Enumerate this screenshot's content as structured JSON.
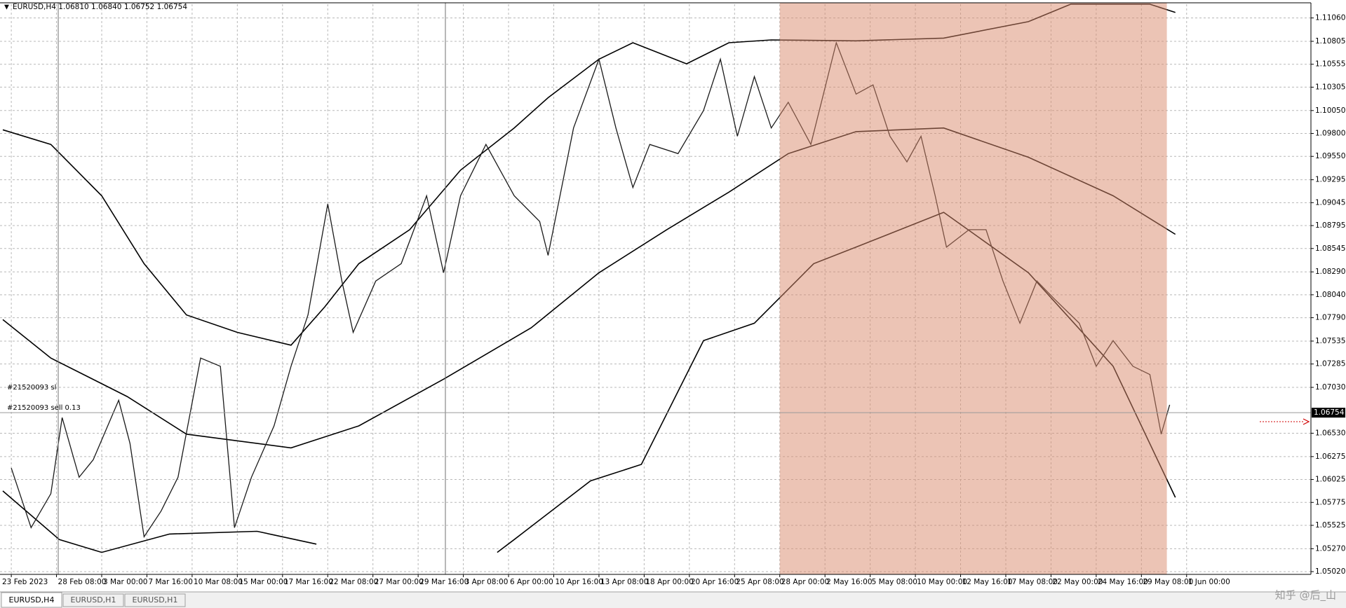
{
  "header": {
    "symbol_info": "EURUSD,H4  1.06810 1.06840 1.06752 1.06754"
  },
  "chart_data": {
    "type": "line",
    "x": [
      0,
      7,
      14,
      18,
      24,
      29,
      38,
      42,
      47,
      53,
      59,
      67,
      74,
      79,
      85,
      93,
      99,
      105,
      112,
      117,
      121,
      129,
      138,
      147,
      153,
      159,
      168,
      178,
      187,
      190,
      199,
      208,
      214,
      220,
      226,
      236,
      245,
      251,
      257,
      263,
      269,
      275,
      283,
      292,
      299,
      305,
      311,
      317,
      322,
      327,
      331,
      339,
      345,
      351,
      357,
      363,
      369,
      378,
      384,
      390,
      397,
      403,
      407,
      410
    ],
    "values": [
      1.0615,
      1.055,
      1.0587,
      1.067,
      1.0605,
      1.0624,
      1.0689,
      1.0642,
      1.054,
      1.0568,
      1.0605,
      1.0735,
      1.0726,
      1.055,
      1.0605,
      1.0661,
      1.0726,
      1.0782,
      1.0903,
      1.0819,
      1.0763,
      1.0819,
      1.0838,
      1.0912,
      1.0828,
      1.0912,
      1.0968,
      1.0912,
      1.0884,
      1.0847,
      1.0986,
      1.1061,
      1.0986,
      1.0921,
      1.0968,
      1.0958,
      1.1005,
      1.1061,
      1.0977,
      1.1042,
      1.0986,
      1.1014,
      1.0968,
      1.1079,
      1.1023,
      1.1033,
      1.0977,
      1.0949,
      1.0977,
      1.0912,
      1.0856,
      1.0875,
      1.0875,
      1.0819,
      1.0773,
      1.0819,
      1.08,
      1.0773,
      1.0726,
      1.0754,
      1.0726,
      1.0717,
      1.0652,
      1.0684
    ],
    "color": "#1a1a1a",
    "bands": [
      {
        "color": "#000000",
        "x": [
          -3,
          14,
          32,
          47,
          62,
          80,
          99,
          111,
          123,
          141,
          159,
          178,
          190,
          208,
          220,
          239,
          254,
          269,
          299,
          330,
          360,
          375,
          403,
          412
        ],
        "values": [
          1.0984,
          1.0968,
          1.0912,
          1.0838,
          1.0782,
          1.0763,
          1.0749,
          1.0791,
          1.0838,
          1.0875,
          1.094,
          1.0986,
          1.1019,
          1.1061,
          1.1079,
          1.1056,
          1.1079,
          1.1082,
          1.1081,
          1.1084,
          1.1102,
          1.1121,
          1.1121,
          1.1112
        ]
      },
      {
        "color": "#000000",
        "x": [
          -3,
          14,
          41,
          62,
          99,
          123,
          153,
          184,
          208,
          232,
          254,
          275,
          299,
          330,
          360,
          390,
          412
        ],
        "values": [
          1.0777,
          1.0735,
          1.0693,
          1.0652,
          1.0637,
          1.0661,
          1.0712,
          1.0768,
          1.0828,
          1.0875,
          1.0916,
          1.0958,
          1.0982,
          1.0986,
          1.0954,
          1.0912,
          1.087
        ]
      },
      {
        "color": "#000000",
        "x": [
          -3,
          17,
          32,
          56,
          87,
          108,
          140,
          172,
          178,
          205,
          223,
          245,
          263,
          284,
          299,
          330,
          360,
          390,
          412
        ],
        "values": [
          1.059,
          1.0537,
          1.0523,
          1.0543,
          1.0546,
          1.0532,
          null,
          1.0523,
          1.0537,
          1.0601,
          1.0619,
          1.0754,
          1.0773,
          1.0838,
          1.0856,
          1.0894,
          1.0828,
          1.0726,
          1.0583
        ]
      }
    ],
    "xlim": [
      -4,
      460
    ],
    "ylim": [
      1.0499,
      1.1121
    ],
    "xticks": [
      {
        "value": 0,
        "label": "23 Feb 2023"
      },
      {
        "value": 16,
        "label": "28 Feb 08:00"
      },
      {
        "value": 32,
        "label": "3 Mar 00:00"
      },
      {
        "value": 48,
        "label": "7 Mar 16:00"
      },
      {
        "value": 64,
        "label": "10 Mar 08:00"
      },
      {
        "value": 80,
        "label": "15 Mar 00:00"
      },
      {
        "value": 96,
        "label": "17 Mar 16:00"
      },
      {
        "value": 112,
        "label": "22 Mar 08:00"
      },
      {
        "value": 128,
        "label": "27 Mar 00:00"
      },
      {
        "value": 144,
        "label": "29 Mar 16:00"
      },
      {
        "value": 160,
        "label": "3 Apr 08:00"
      },
      {
        "value": 176,
        "label": "6 Apr 00:00"
      },
      {
        "value": 192,
        "label": "10 Apr 16:00"
      },
      {
        "value": 208,
        "label": "13 Apr 08:00"
      },
      {
        "value": 224,
        "label": "18 Apr 00:00"
      },
      {
        "value": 240,
        "label": "20 Apr 16:00"
      },
      {
        "value": 256,
        "label": "25 Apr 08:00"
      },
      {
        "value": 272,
        "label": "28 Apr 00:00"
      },
      {
        "value": 288,
        "label": "2 May 16:00"
      },
      {
        "value": 304,
        "label": "5 May 08:00"
      },
      {
        "value": 320,
        "label": "10 May 00:00"
      },
      {
        "value": 336,
        "label": "12 May 16:00"
      },
      {
        "value": 352,
        "label": "17 May 08:00"
      },
      {
        "value": 368,
        "label": "22 May 00:00"
      },
      {
        "value": 384,
        "label": "24 May 16:00"
      },
      {
        "value": 400,
        "label": "29 May 08:00"
      },
      {
        "value": 416,
        "label": "1 Jun 00:00"
      }
    ],
    "yticks": [
      {
        "value": 1.1106,
        "label": "1.11060"
      },
      1.10805,
      1.10555,
      1.10305,
      {
        "value": 1.1005,
        "label": "1.10050"
      },
      {
        "value": 1.098,
        "label": "1.09800"
      },
      {
        "value": 1.0955,
        "label": "1.09550"
      },
      1.09295,
      1.09045,
      1.08795,
      1.08545,
      {
        "value": 1.0829,
        "label": "1.08290"
      },
      {
        "value": 1.0804,
        "label": "1.08040"
      },
      {
        "value": 1.0779,
        "label": "1.07790"
      },
      1.07535,
      1.07285,
      {
        "value": 1.0703,
        "label": "1.07030"
      },
      {
        "value": 1.0653,
        "label": "1.06530"
      },
      1.06275,
      1.06025,
      1.05775,
      1.05525,
      {
        "value": 1.0527,
        "label": "1.05270"
      },
      {
        "value": 1.0502,
        "label": "1.05020"
      }
    ],
    "grid": true,
    "current_price": 1.06754,
    "shaded_x": [
      272,
      409
    ],
    "shade_color": "#d98a6c",
    "annotations": [
      "#21520093 sl",
      "#21520093 sell 0.13"
    ]
  },
  "tabs": [
    "EURUSD,H4",
    "EURUSD,H1",
    "EURUSD,H1"
  ],
  "watermark": "知乎 @后_山"
}
